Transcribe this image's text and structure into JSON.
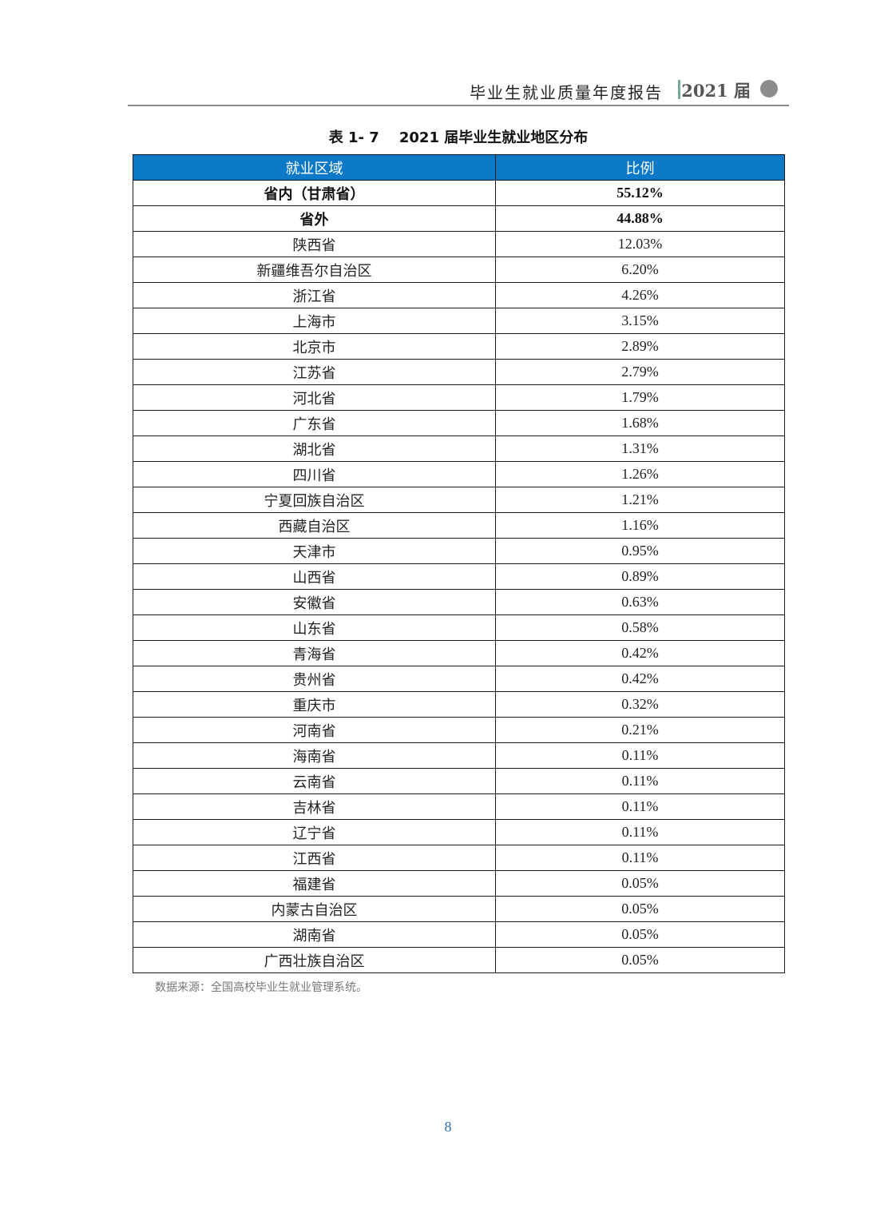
{
  "header": {
    "title": "毕业生就业质量年度报告",
    "year": "2021 届"
  },
  "caption": {
    "label": "表 1- 7",
    "text": "2021 届毕业生就业地区分布"
  },
  "table": {
    "columns": [
      "就业区域",
      "比例"
    ],
    "rows": [
      {
        "region": "省内（甘肃省）",
        "ratio": "55.12%"
      },
      {
        "region": "省外",
        "ratio": "44.88%"
      },
      {
        "region": "陕西省",
        "ratio": "12.03%"
      },
      {
        "region": "新疆维吾尔自治区",
        "ratio": "6.20%"
      },
      {
        "region": "浙江省",
        "ratio": "4.26%"
      },
      {
        "region": "上海市",
        "ratio": "3.15%"
      },
      {
        "region": "北京市",
        "ratio": "2.89%"
      },
      {
        "region": "江苏省",
        "ratio": "2.79%"
      },
      {
        "region": "河北省",
        "ratio": "1.79%"
      },
      {
        "region": "广东省",
        "ratio": "1.68%"
      },
      {
        "region": "湖北省",
        "ratio": "1.31%"
      },
      {
        "region": "四川省",
        "ratio": "1.26%"
      },
      {
        "region": "宁夏回族自治区",
        "ratio": "1.21%"
      },
      {
        "region": "西藏自治区",
        "ratio": "1.16%"
      },
      {
        "region": "天津市",
        "ratio": "0.95%"
      },
      {
        "region": "山西省",
        "ratio": "0.89%"
      },
      {
        "region": "安徽省",
        "ratio": "0.63%"
      },
      {
        "region": "山东省",
        "ratio": "0.58%"
      },
      {
        "region": "青海省",
        "ratio": "0.42%"
      },
      {
        "region": "贵州省",
        "ratio": "0.42%"
      },
      {
        "region": "重庆市",
        "ratio": "0.32%"
      },
      {
        "region": "河南省",
        "ratio": "0.21%"
      },
      {
        "region": "海南省",
        "ratio": "0.11%"
      },
      {
        "region": "云南省",
        "ratio": "0.11%"
      },
      {
        "region": "吉林省",
        "ratio": "0.11%"
      },
      {
        "region": "辽宁省",
        "ratio": "0.11%"
      },
      {
        "region": "江西省",
        "ratio": "0.11%"
      },
      {
        "region": "福建省",
        "ratio": "0.05%"
      },
      {
        "region": "内蒙古自治区",
        "ratio": "0.05%"
      },
      {
        "region": "湖南省",
        "ratio": "0.05%"
      },
      {
        "region": "广西壮族自治区",
        "ratio": "0.05%"
      }
    ]
  },
  "source": "数据来源：全国高校毕业生就业管理系统。",
  "page_number": "8",
  "colors": {
    "table_header_bg": "#0b78c8",
    "header_separator": "#7aab96",
    "page_number": "#2a6fb5"
  }
}
